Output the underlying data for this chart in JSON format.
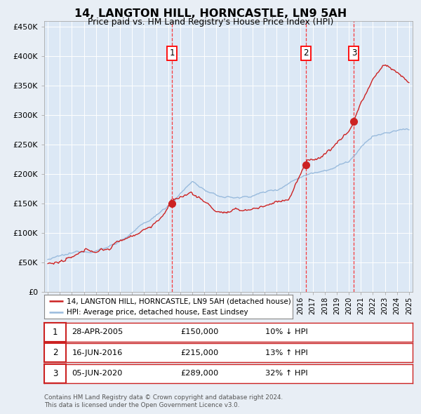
{
  "title": "14, LANGTON HILL, HORNCASTLE, LN9 5AH",
  "subtitle": "Price paid vs. HM Land Registry's House Price Index (HPI)",
  "background_color": "#e8eef5",
  "plot_bg_color": "#dce8f5",
  "yticks": [
    0,
    50000,
    100000,
    150000,
    200000,
    250000,
    300000,
    350000,
    400000,
    450000
  ],
  "ytick_labels": [
    "£0",
    "£50K",
    "£100K",
    "£150K",
    "£200K",
    "£250K",
    "£300K",
    "£350K",
    "£400K",
    "£450K"
  ],
  "ylim": [
    0,
    460000
  ],
  "hpi_color": "#99bbdd",
  "price_color": "#cc2222",
  "sale_marker_color": "#cc2222",
  "sale1_date": 2005.33,
  "sale1_price": 150000,
  "sale2_date": 2016.46,
  "sale2_price": 215000,
  "sale3_date": 2020.43,
  "sale3_price": 289000,
  "footnote1": "Contains HM Land Registry data © Crown copyright and database right 2024.",
  "footnote2": "This data is licensed under the Open Government Licence v3.0.",
  "legend_label_red": "14, LANGTON HILL, HORNCASTLE, LN9 5AH (detached house)",
  "legend_label_blue": "HPI: Average price, detached house, East Lindsey",
  "table_rows": [
    [
      "1",
      "28-APR-2005",
      "£150,000",
      "10% ↓ HPI"
    ],
    [
      "2",
      "16-JUN-2016",
      "£215,000",
      "13% ↑ HPI"
    ],
    [
      "3",
      "05-JUN-2020",
      "£289,000",
      "32% ↑ HPI"
    ]
  ]
}
